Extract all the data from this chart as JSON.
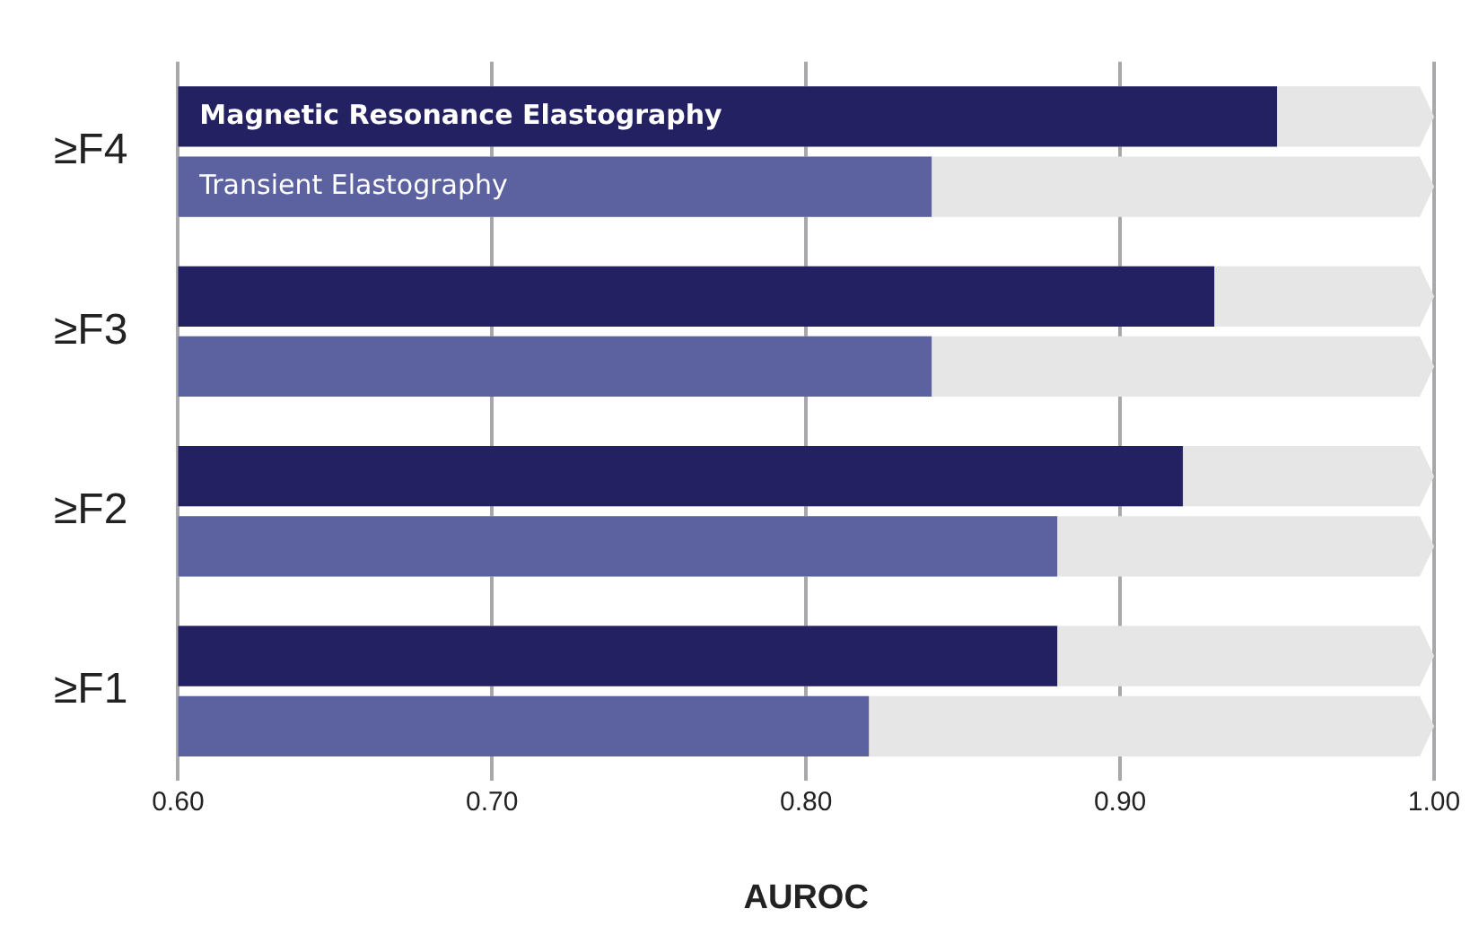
{
  "chart_data": {
    "type": "bar",
    "orientation": "horizontal",
    "xlabel": "AUROC",
    "categories": [
      "≥F4",
      "≥F3",
      "≥F2",
      "≥F1"
    ],
    "series": [
      {
        "name": "Magnetic Resonance Elastography",
        "color": "#232162",
        "values": [
          0.95,
          0.93,
          0.92,
          0.88
        ]
      },
      {
        "name": "Transient Elastography",
        "color": "#5c61a0",
        "values": [
          0.84,
          0.84,
          0.88,
          0.82
        ]
      }
    ],
    "xlim": [
      0.6,
      1.0
    ],
    "xticks": [
      {
        "value": 0.6,
        "label": "0.60"
      },
      {
        "value": 0.7,
        "label": "0.70"
      },
      {
        "value": 0.8,
        "label": "0.80"
      },
      {
        "value": 0.9,
        "label": "0.90"
      },
      {
        "value": 1.0,
        "label": "1.00"
      }
    ],
    "grid": "x",
    "legend": false
  }
}
